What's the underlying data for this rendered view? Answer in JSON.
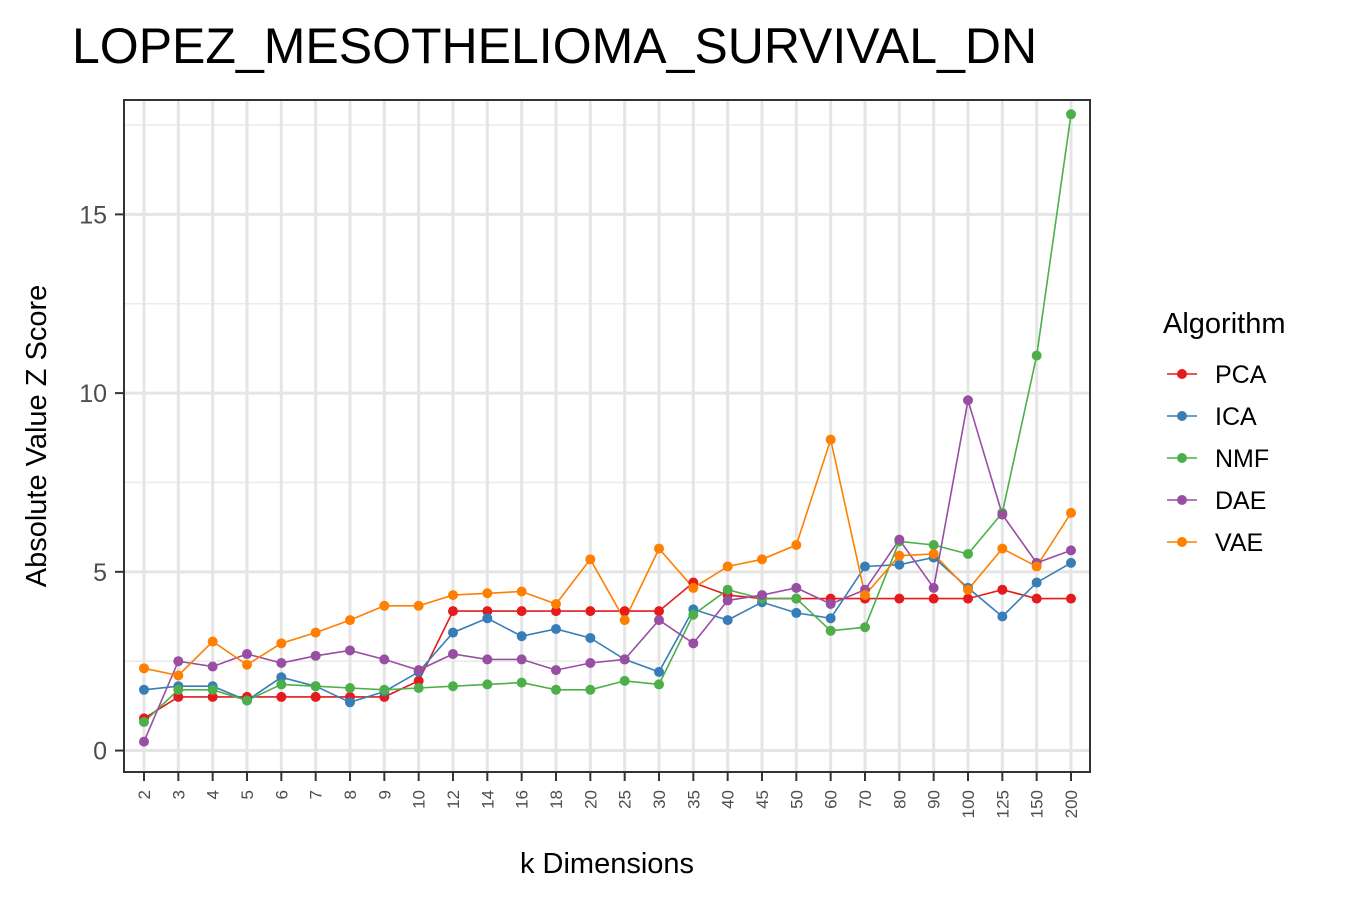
{
  "chart_data": {
    "type": "line",
    "title": "LOPEZ_MESOTHELIOMA_SURVIVAL_DN",
    "xlabel": "k Dimensions",
    "ylabel": "Absolute Value Z Score",
    "categories": [
      "2",
      "3",
      "4",
      "5",
      "6",
      "7",
      "8",
      "9",
      "10",
      "12",
      "14",
      "16",
      "18",
      "20",
      "25",
      "30",
      "35",
      "40",
      "45",
      "50",
      "60",
      "70",
      "80",
      "90",
      "100",
      "125",
      "150",
      "200"
    ],
    "ylim": [
      -0.6,
      18.2
    ],
    "yticks": [
      "0",
      "5",
      "10",
      "15"
    ],
    "grid": true,
    "legend": {
      "title": "Algorithm",
      "position": "right"
    },
    "series": [
      {
        "name": "PCA",
        "color": "#e41a1c",
        "values": [
          0.9,
          1.5,
          1.5,
          1.5,
          1.5,
          1.5,
          1.5,
          1.5,
          1.95,
          3.9,
          3.9,
          3.9,
          3.9,
          3.9,
          3.9,
          3.9,
          4.7,
          4.35,
          4.25,
          4.25,
          4.25,
          4.25,
          4.25,
          4.25,
          4.25,
          4.5,
          4.25,
          4.25
        ]
      },
      {
        "name": "ICA",
        "color": "#377eb8",
        "values": [
          1.7,
          1.8,
          1.8,
          1.4,
          2.05,
          1.8,
          1.35,
          1.65,
          2.2,
          3.3,
          3.7,
          3.2,
          3.4,
          3.15,
          2.55,
          2.2,
          3.95,
          3.65,
          4.15,
          3.85,
          3.7,
          5.15,
          5.2,
          5.4,
          4.55,
          3.75,
          4.7,
          5.25
        ]
      },
      {
        "name": "NMF",
        "color": "#4daf4a",
        "values": [
          0.8,
          1.7,
          1.7,
          1.4,
          1.85,
          1.8,
          1.75,
          1.7,
          1.75,
          1.8,
          1.85,
          1.9,
          1.7,
          1.7,
          1.95,
          1.85,
          3.8,
          4.5,
          4.25,
          4.25,
          3.35,
          3.45,
          5.85,
          5.75,
          5.5,
          6.65,
          11.05,
          17.8
        ]
      },
      {
        "name": "DAE",
        "color": "#984ea3",
        "values": [
          0.25,
          2.5,
          2.35,
          2.7,
          2.45,
          2.65,
          2.8,
          2.55,
          2.25,
          2.7,
          2.55,
          2.55,
          2.25,
          2.45,
          2.55,
          3.65,
          3.0,
          4.2,
          4.35,
          4.55,
          4.1,
          4.5,
          5.9,
          4.55,
          9.8,
          6.6,
          5.25,
          5.6
        ]
      },
      {
        "name": "VAE",
        "color": "#ff7f00",
        "values": [
          2.3,
          2.1,
          3.05,
          2.4,
          3.0,
          3.3,
          3.65,
          4.05,
          4.05,
          4.35,
          4.4,
          4.45,
          4.1,
          5.35,
          3.65,
          5.65,
          4.55,
          5.15,
          5.35,
          5.75,
          8.7,
          4.35,
          5.45,
          5.5,
          4.5,
          5.65,
          5.15,
          6.65
        ]
      }
    ]
  }
}
